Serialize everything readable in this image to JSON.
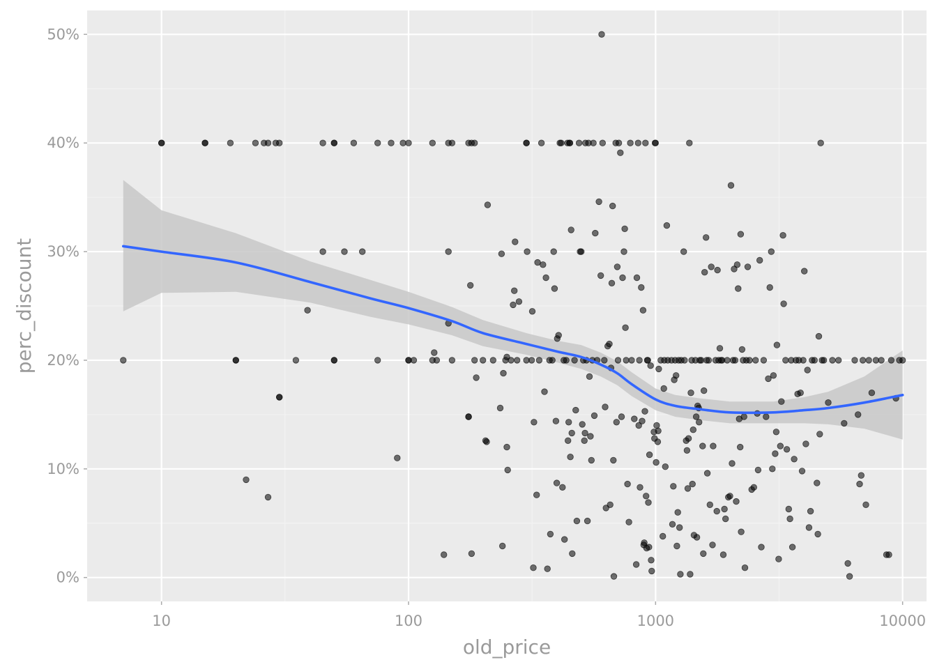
{
  "chart_data": {
    "type": "scatter",
    "title": "",
    "xlabel": "old_price",
    "ylabel": "perc_discount",
    "x_scale": "log10",
    "xlim": [
      5,
      12500
    ],
    "ylim": [
      -0.022,
      0.522
    ],
    "x_ticks": [
      10,
      100,
      1000,
      10000
    ],
    "x_tick_labels": [
      "10",
      "100",
      "1000",
      "10000"
    ],
    "y_ticks": [
      0,
      0.1,
      0.2,
      0.3,
      0.4,
      0.5
    ],
    "y_tick_labels": [
      "0%",
      "10%",
      "20%",
      "30%",
      "40%",
      "50%"
    ],
    "grid": true,
    "legend": "none",
    "colors": {
      "panel_background": "#ebebeb",
      "points": "#000000",
      "smooth_line": "#3366ff",
      "confidence_band": "#c8c8c8"
    },
    "point_alpha": 0.55,
    "points": [
      [
        7,
        0.2
      ],
      [
        10,
        0.4
      ],
      [
        10,
        0.4
      ],
      [
        15,
        0.4
      ],
      [
        15,
        0.4
      ],
      [
        19,
        0.4
      ],
      [
        20,
        0.2
      ],
      [
        20,
        0.2
      ],
      [
        22,
        0.09
      ],
      [
        24,
        0.4
      ],
      [
        26,
        0.4
      ],
      [
        27,
        0.4
      ],
      [
        27,
        0.074
      ],
      [
        29,
        0.4
      ],
      [
        30,
        0.4
      ],
      [
        30,
        0.166
      ],
      [
        30,
        0.166
      ],
      [
        35,
        0.2
      ],
      [
        39,
        0.246
      ],
      [
        45,
        0.4
      ],
      [
        45,
        0.3
      ],
      [
        50,
        0.4
      ],
      [
        50,
        0.4
      ],
      [
        50,
        0.2
      ],
      [
        50,
        0.2
      ],
      [
        55,
        0.3
      ],
      [
        60,
        0.4
      ],
      [
        65,
        0.3
      ],
      [
        75,
        0.4
      ],
      [
        75,
        0.2
      ],
      [
        85,
        0.4
      ],
      [
        90,
        0.11
      ],
      [
        95,
        0.4
      ],
      [
        100,
        0.4
      ],
      [
        100,
        0.2
      ],
      [
        100,
        0.2
      ],
      [
        105,
        0.2
      ],
      [
        125,
        0.4
      ],
      [
        125,
        0.2
      ],
      [
        127,
        0.207
      ],
      [
        130,
        0.2
      ],
      [
        139,
        0.021
      ],
      [
        145,
        0.234
      ],
      [
        145,
        0.3
      ],
      [
        145,
        0.4
      ],
      [
        150,
        0.4
      ],
      [
        150,
        0.2
      ],
      [
        175,
        0.4
      ],
      [
        175,
        0.148
      ],
      [
        175,
        0.148
      ],
      [
        178,
        0.269
      ],
      [
        180,
        0.4
      ],
      [
        180,
        0.022
      ],
      [
        185,
        0.4
      ],
      [
        185,
        0.2
      ],
      [
        188,
        0.184
      ],
      [
        200,
        0.2
      ],
      [
        205,
        0.126
      ],
      [
        207,
        0.125
      ],
      [
        209,
        0.343
      ],
      [
        220,
        0.2
      ],
      [
        235,
        0.156
      ],
      [
        238,
        0.298
      ],
      [
        240,
        0.029
      ],
      [
        242,
        0.188
      ],
      [
        247,
        0.2
      ],
      [
        250,
        0.12
      ],
      [
        250,
        0.203
      ],
      [
        252,
        0.099
      ],
      [
        260,
        0.2
      ],
      [
        265,
        0.251
      ],
      [
        268,
        0.264
      ],
      [
        270,
        0.309
      ],
      [
        275,
        0.2
      ],
      [
        280,
        0.254
      ],
      [
        300,
        0.4
      ],
      [
        300,
        0.4
      ],
      [
        300,
        0.2
      ],
      [
        302,
        0.3
      ],
      [
        315,
        0.2
      ],
      [
        317,
        0.245
      ],
      [
        320,
        0.009
      ],
      [
        322,
        0.143
      ],
      [
        330,
        0.076
      ],
      [
        333,
        0.29
      ],
      [
        338,
        0.2
      ],
      [
        345,
        0.4
      ],
      [
        350,
        0.288
      ],
      [
        355,
        0.171
      ],
      [
        360,
        0.276
      ],
      [
        365,
        0.008
      ],
      [
        372,
        0.2
      ],
      [
        375,
        0.04
      ],
      [
        382,
        0.2
      ],
      [
        387,
        0.3
      ],
      [
        390,
        0.266
      ],
      [
        395,
        0.144
      ],
      [
        398,
        0.087
      ],
      [
        400,
        0.22
      ],
      [
        405,
        0.223
      ],
      [
        410,
        0.4
      ],
      [
        415,
        0.4
      ],
      [
        420,
        0.083
      ],
      [
        425,
        0.2
      ],
      [
        428,
        0.035
      ],
      [
        435,
        0.2
      ],
      [
        440,
        0.4
      ],
      [
        442,
        0.126
      ],
      [
        445,
        0.143
      ],
      [
        448,
        0.4
      ],
      [
        450,
        0.4
      ],
      [
        452,
        0.111
      ],
      [
        455,
        0.32
      ],
      [
        458,
        0.133
      ],
      [
        460,
        0.022
      ],
      [
        470,
        0.2
      ],
      [
        475,
        0.154
      ],
      [
        480,
        0.052
      ],
      [
        490,
        0.4
      ],
      [
        495,
        0.3
      ],
      [
        500,
        0.3
      ],
      [
        505,
        0.141
      ],
      [
        510,
        0.2
      ],
      [
        515,
        0.126
      ],
      [
        518,
        0.133
      ],
      [
        520,
        0.4
      ],
      [
        525,
        0.2
      ],
      [
        530,
        0.052
      ],
      [
        535,
        0.4
      ],
      [
        540,
        0.185
      ],
      [
        545,
        0.13
      ],
      [
        550,
        0.108
      ],
      [
        555,
        0.2
      ],
      [
        560,
        0.4
      ],
      [
        565,
        0.149
      ],
      [
        570,
        0.317
      ],
      [
        580,
        0.2
      ],
      [
        590,
        0.346
      ],
      [
        600,
        0.278
      ],
      [
        605,
        0.5
      ],
      [
        610,
        0.4
      ],
      [
        620,
        0.2
      ],
      [
        625,
        0.157
      ],
      [
        630,
        0.064
      ],
      [
        640,
        0.213
      ],
      [
        650,
        0.215
      ],
      [
        655,
        0.067
      ],
      [
        660,
        0.193
      ],
      [
        665,
        0.271
      ],
      [
        670,
        0.342
      ],
      [
        675,
        0.108
      ],
      [
        678,
        0.001
      ],
      [
        690,
        0.4
      ],
      [
        695,
        0.143
      ],
      [
        700,
        0.286
      ],
      [
        705,
        0.2
      ],
      [
        710,
        0.4
      ],
      [
        720,
        0.391
      ],
      [
        728,
        0.148
      ],
      [
        735,
        0.276
      ],
      [
        745,
        0.3
      ],
      [
        750,
        0.321
      ],
      [
        755,
        0.23
      ],
      [
        760,
        0.2
      ],
      [
        770,
        0.086
      ],
      [
        780,
        0.051
      ],
      [
        790,
        0.4
      ],
      [
        800,
        0.2
      ],
      [
        820,
        0.146
      ],
      [
        835,
        0.012
      ],
      [
        840,
        0.276
      ],
      [
        850,
        0.4
      ],
      [
        855,
        0.14
      ],
      [
        860,
        0.2
      ],
      [
        865,
        0.083
      ],
      [
        875,
        0.267
      ],
      [
        882,
        0.144
      ],
      [
        890,
        0.246
      ],
      [
        895,
        0.03
      ],
      [
        900,
        0.032
      ],
      [
        905,
        0.153
      ],
      [
        910,
        0.4
      ],
      [
        915,
        0.075
      ],
      [
        920,
        0.027
      ],
      [
        925,
        0.2
      ],
      [
        930,
        0.2
      ],
      [
        935,
        0.069
      ],
      [
        940,
        0.028
      ],
      [
        945,
        0.113
      ],
      [
        955,
        0.195
      ],
      [
        960,
        0.016
      ],
      [
        965,
        0.006
      ],
      [
        985,
        0.134
      ],
      [
        990,
        0.128
      ],
      [
        995,
        0.4
      ],
      [
        1000,
        0.4
      ],
      [
        1005,
        0.106
      ],
      [
        1010,
        0.14
      ],
      [
        1020,
        0.125
      ],
      [
        1025,
        0.135
      ],
      [
        1030,
        0.192
      ],
      [
        1050,
        0.2
      ],
      [
        1070,
        0.038
      ],
      [
        1080,
        0.174
      ],
      [
        1085,
        0.2
      ],
      [
        1095,
        0.102
      ],
      [
        1110,
        0.324
      ],
      [
        1120,
        0.2
      ],
      [
        1160,
        0.2
      ],
      [
        1170,
        0.049
      ],
      [
        1180,
        0.084
      ],
      [
        1190,
        0.182
      ],
      [
        1200,
        0.2
      ],
      [
        1210,
        0.186
      ],
      [
        1220,
        0.029
      ],
      [
        1230,
        0.06
      ],
      [
        1240,
        0.2
      ],
      [
        1250,
        0.046
      ],
      [
        1260,
        0.003
      ],
      [
        1270,
        0.2
      ],
      [
        1300,
        0.3
      ],
      [
        1310,
        0.2
      ],
      [
        1330,
        0.126
      ],
      [
        1340,
        0.117
      ],
      [
        1350,
        0.082
      ],
      [
        1360,
        0.128
      ],
      [
        1370,
        0.4
      ],
      [
        1380,
        0.003
      ],
      [
        1390,
        0.17
      ],
      [
        1400,
        0.2
      ],
      [
        1410,
        0.086
      ],
      [
        1420,
        0.136
      ],
      [
        1430,
        0.039
      ],
      [
        1450,
        0.2
      ],
      [
        1460,
        0.148
      ],
      [
        1470,
        0.037
      ],
      [
        1480,
        0.158
      ],
      [
        1495,
        0.156
      ],
      [
        1500,
        0.143
      ],
      [
        1510,
        0.2
      ],
      [
        1530,
        0.2
      ],
      [
        1550,
        0.121
      ],
      [
        1560,
        0.022
      ],
      [
        1570,
        0.172
      ],
      [
        1580,
        0.281
      ],
      [
        1600,
        0.313
      ],
      [
        1610,
        0.2
      ],
      [
        1620,
        0.096
      ],
      [
        1640,
        0.2
      ],
      [
        1660,
        0.067
      ],
      [
        1680,
        0.286
      ],
      [
        1700,
        0.03
      ],
      [
        1710,
        0.121
      ],
      [
        1750,
        0.2
      ],
      [
        1770,
        0.061
      ],
      [
        1780,
        0.283
      ],
      [
        1800,
        0.2
      ],
      [
        1820,
        0.211
      ],
      [
        1840,
        0.2
      ],
      [
        1860,
        0.2
      ],
      [
        1880,
        0.021
      ],
      [
        1900,
        0.063
      ],
      [
        1920,
        0.054
      ],
      [
        1950,
        0.2
      ],
      [
        1970,
        0.074
      ],
      [
        2000,
        0.075
      ],
      [
        2020,
        0.361
      ],
      [
        2040,
        0.105
      ],
      [
        2060,
        0.2
      ],
      [
        2080,
        0.284
      ],
      [
        2100,
        0.2
      ],
      [
        2120,
        0.07
      ],
      [
        2140,
        0.288
      ],
      [
        2160,
        0.266
      ],
      [
        2180,
        0.146
      ],
      [
        2200,
        0.12
      ],
      [
        2210,
        0.316
      ],
      [
        2220,
        0.042
      ],
      [
        2240,
        0.21
      ],
      [
        2260,
        0.2
      ],
      [
        2280,
        0.148
      ],
      [
        2300,
        0.009
      ],
      [
        2330,
        0.2
      ],
      [
        2360,
        0.286
      ],
      [
        2400,
        0.2
      ],
      [
        2450,
        0.081
      ],
      [
        2500,
        0.083
      ],
      [
        2540,
        0.2
      ],
      [
        2580,
        0.151
      ],
      [
        2600,
        0.099
      ],
      [
        2640,
        0.292
      ],
      [
        2680,
        0.028
      ],
      [
        2740,
        0.2
      ],
      [
        2800,
        0.148
      ],
      [
        2860,
        0.183
      ],
      [
        2900,
        0.267
      ],
      [
        2940,
        0.3
      ],
      [
        2970,
        0.1
      ],
      [
        3000,
        0.186
      ],
      [
        3050,
        0.114
      ],
      [
        3080,
        0.134
      ],
      [
        3100,
        0.214
      ],
      [
        3150,
        0.017
      ],
      [
        3200,
        0.121
      ],
      [
        3230,
        0.162
      ],
      [
        3280,
        0.315
      ],
      [
        3300,
        0.252
      ],
      [
        3360,
        0.2
      ],
      [
        3400,
        0.118
      ],
      [
        3460,
        0.063
      ],
      [
        3500,
        0.054
      ],
      [
        3540,
        0.2
      ],
      [
        3580,
        0.028
      ],
      [
        3640,
        0.109
      ],
      [
        3700,
        0.2
      ],
      [
        3760,
        0.169
      ],
      [
        3800,
        0.2
      ],
      [
        3860,
        0.17
      ],
      [
        3920,
        0.098
      ],
      [
        3960,
        0.2
      ],
      [
        4000,
        0.282
      ],
      [
        4060,
        0.123
      ],
      [
        4120,
        0.191
      ],
      [
        4180,
        0.046
      ],
      [
        4240,
        0.061
      ],
      [
        4300,
        0.2
      ],
      [
        4400,
        0.2
      ],
      [
        4500,
        0.087
      ],
      [
        4540,
        0.04
      ],
      [
        4580,
        0.222
      ],
      [
        4620,
        0.132
      ],
      [
        4660,
        0.4
      ],
      [
        4720,
        0.2
      ],
      [
        4800,
        0.2
      ],
      [
        5000,
        0.161
      ],
      [
        5200,
        0.2
      ],
      [
        5500,
        0.2
      ],
      [
        5800,
        0.142
      ],
      [
        6000,
        0.013
      ],
      [
        6100,
        0.001
      ],
      [
        6400,
        0.2
      ],
      [
        6600,
        0.15
      ],
      [
        6700,
        0.086
      ],
      [
        6800,
        0.094
      ],
      [
        6900,
        0.2
      ],
      [
        7100,
        0.067
      ],
      [
        7300,
        0.2
      ],
      [
        7500,
        0.17
      ],
      [
        7800,
        0.2
      ],
      [
        8200,
        0.2
      ],
      [
        8600,
        0.021
      ],
      [
        8800,
        0.021
      ],
      [
        9000,
        0.2
      ],
      [
        9400,
        0.165
      ],
      [
        9700,
        0.2
      ],
      [
        10000,
        0.2
      ]
    ],
    "smooth": {
      "method": "loess",
      "x": [
        7,
        10,
        20,
        40,
        70,
        100,
        150,
        200,
        300,
        400,
        500,
        600,
        700,
        800,
        1000,
        1200,
        1500,
        2000,
        3000,
        4000,
        5000,
        7000,
        10000
      ],
      "y": [
        0.305,
        0.3,
        0.29,
        0.272,
        0.257,
        0.248,
        0.236,
        0.225,
        0.215,
        0.208,
        0.203,
        0.196,
        0.188,
        0.178,
        0.164,
        0.158,
        0.155,
        0.152,
        0.152,
        0.154,
        0.156,
        0.161,
        0.168
      ],
      "lower": [
        0.245,
        0.262,
        0.263,
        0.253,
        0.24,
        0.233,
        0.223,
        0.213,
        0.205,
        0.198,
        0.192,
        0.185,
        0.177,
        0.167,
        0.154,
        0.148,
        0.145,
        0.142,
        0.142,
        0.142,
        0.141,
        0.137,
        0.127
      ],
      "upper": [
        0.366,
        0.338,
        0.317,
        0.291,
        0.274,
        0.263,
        0.249,
        0.237,
        0.225,
        0.218,
        0.214,
        0.207,
        0.199,
        0.189,
        0.174,
        0.168,
        0.165,
        0.162,
        0.162,
        0.166,
        0.171,
        0.185,
        0.209
      ]
    }
  }
}
